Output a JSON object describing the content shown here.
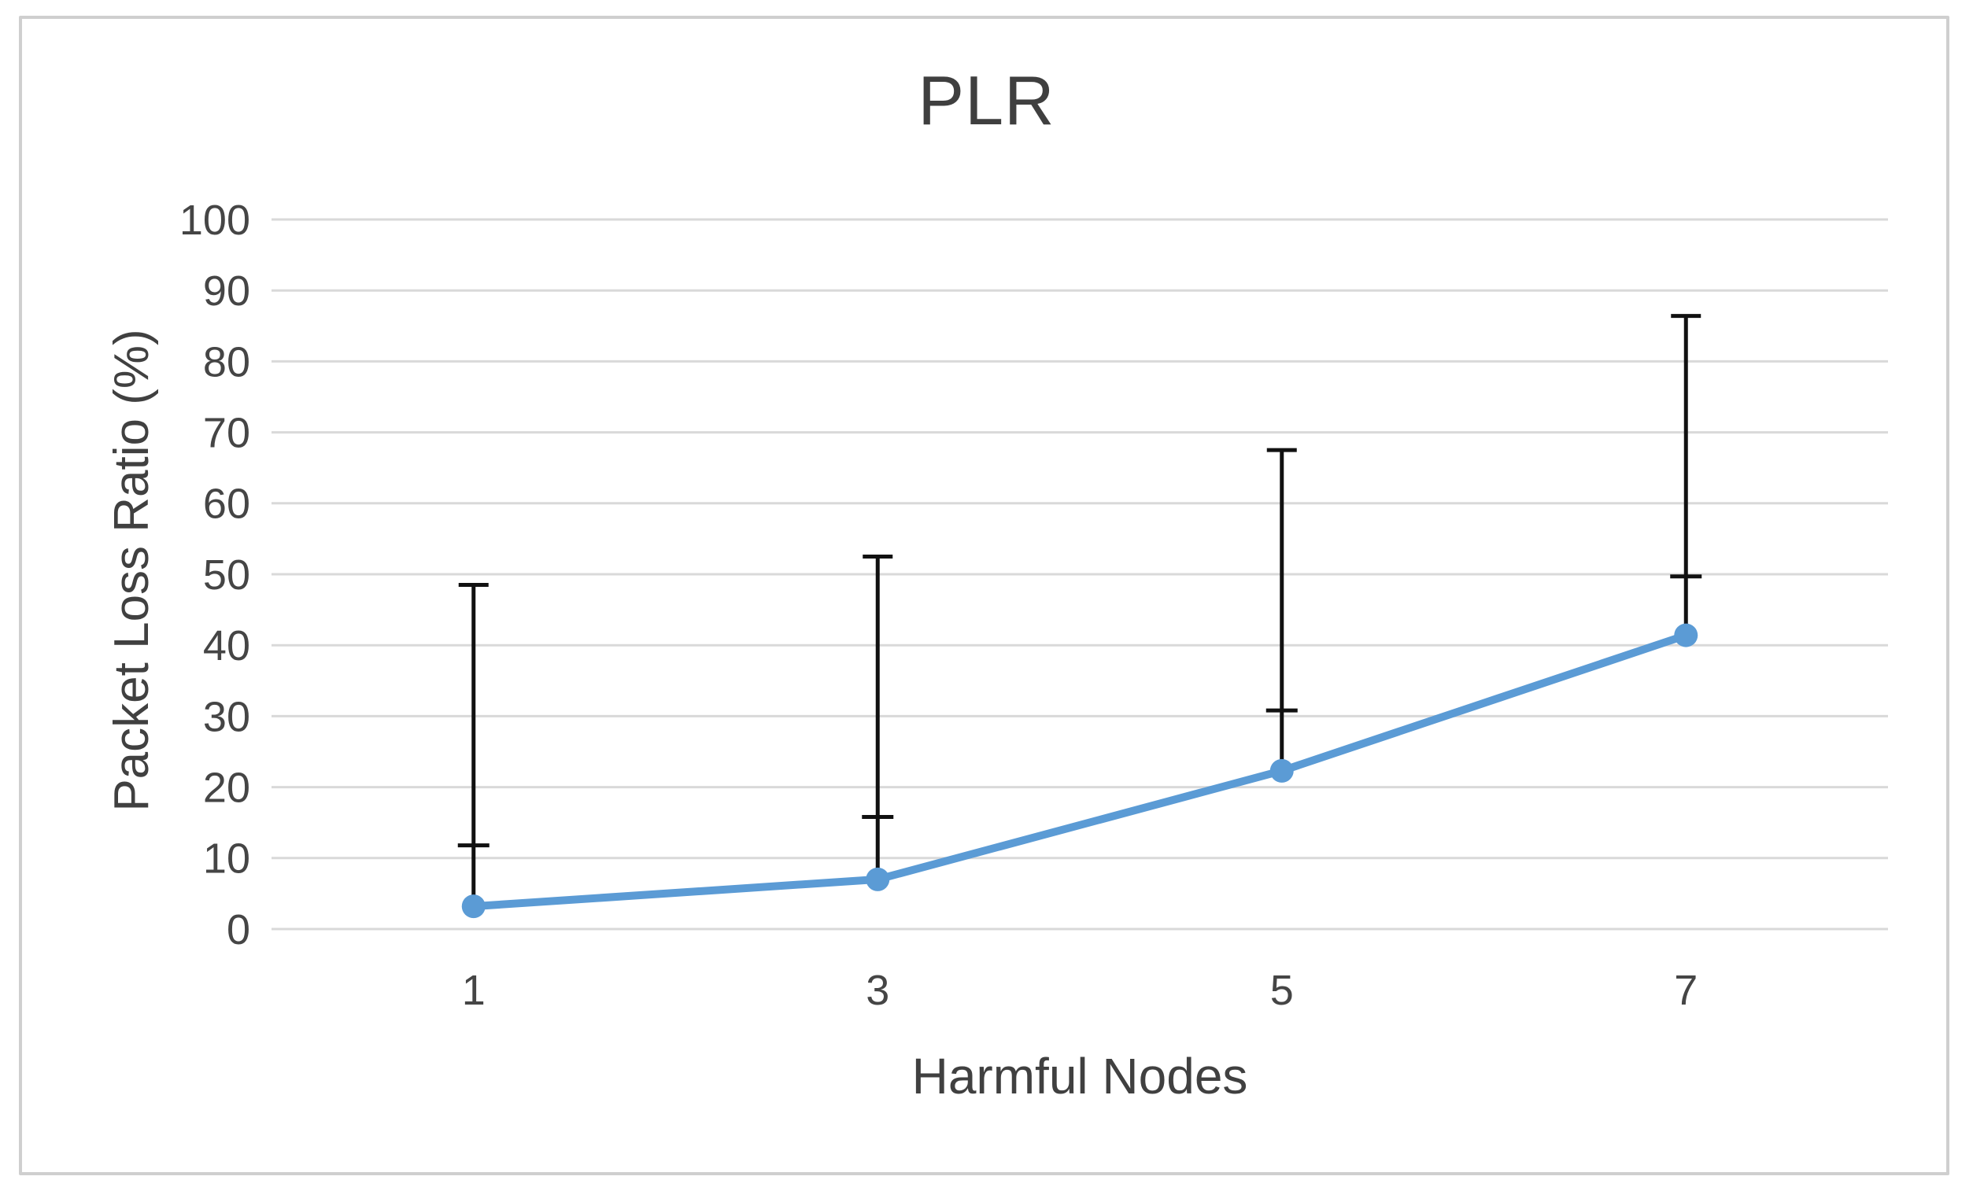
{
  "chart_data": {
    "type": "line",
    "title": "PLR",
    "xlabel": "Harmful Nodes",
    "ylabel": "Packet Loss Ratio (%)",
    "categories": [
      "1",
      "3",
      "5",
      "7"
    ],
    "series": [
      {
        "name": "PLR",
        "values": [
          3.2,
          7,
          22.3,
          41.4
        ],
        "error_bars": {
          "direction": "plus",
          "top_cap": [
            48.5,
            52.5,
            67.5,
            86.4
          ],
          "mid_tick_cap": [
            11.8,
            15.8,
            30.8,
            49.7
          ]
        }
      }
    ],
    "ylim": [
      0,
      100
    ],
    "y_ticks": [
      0,
      10,
      20,
      30,
      40,
      50,
      60,
      70,
      80,
      90,
      100
    ],
    "grid": "horizontal",
    "legend": "none",
    "marker": "circle",
    "colors": {
      "line": "#5B9BD5",
      "marker": "#5B9BD5",
      "error_bar": "#111111",
      "gridline": "#D9D9D9",
      "tick_text": "#454545",
      "title_text": "#3F3F3F",
      "frame_border": "#CFCFCF",
      "background": "#FFFFFF"
    }
  }
}
